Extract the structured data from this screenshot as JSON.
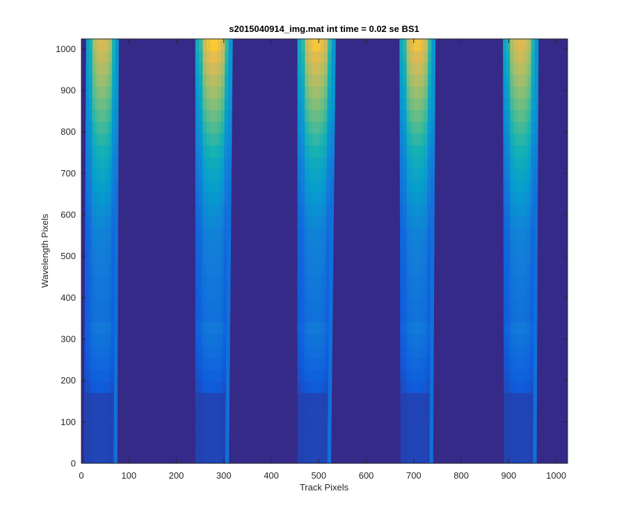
{
  "chart_data": {
    "type": "heatmap",
    "title": "s2015040914_img.mat int time = 0.02 se   BS1",
    "xlabel": "Track Pixels",
    "ylabel": "Wavelength Pixels",
    "xlim": [
      0,
      1024
    ],
    "ylim": [
      0,
      1024
    ],
    "xticks": [
      "0",
      "100",
      "200",
      "300",
      "400",
      "500",
      "600",
      "700",
      "800",
      "900",
      "1000"
    ],
    "yticks": [
      "0",
      "100",
      "200",
      "300",
      "400",
      "500",
      "600",
      "700",
      "800",
      "900",
      "1000"
    ],
    "colormap": "parula",
    "background_value": 0.05,
    "grid": false,
    "stripes": [
      {
        "x_left_top": 10,
        "x_right_top": 78,
        "x_left_bottom": 5,
        "x_right_bottom": 75,
        "peak": 0.88
      },
      {
        "x_left_top": 240,
        "x_right_top": 318,
        "x_left_bottom": 240,
        "x_right_bottom": 310,
        "peak": 0.97
      },
      {
        "x_left_top": 455,
        "x_right_top": 535,
        "x_left_bottom": 455,
        "x_right_bottom": 525,
        "peak": 0.96
      },
      {
        "x_left_top": 670,
        "x_right_top": 745,
        "x_left_bottom": 672,
        "x_right_bottom": 740,
        "peak": 0.95
      },
      {
        "x_left_top": 888,
        "x_right_top": 962,
        "x_left_bottom": 890,
        "x_right_bottom": 958,
        "peak": 0.9
      }
    ]
  }
}
